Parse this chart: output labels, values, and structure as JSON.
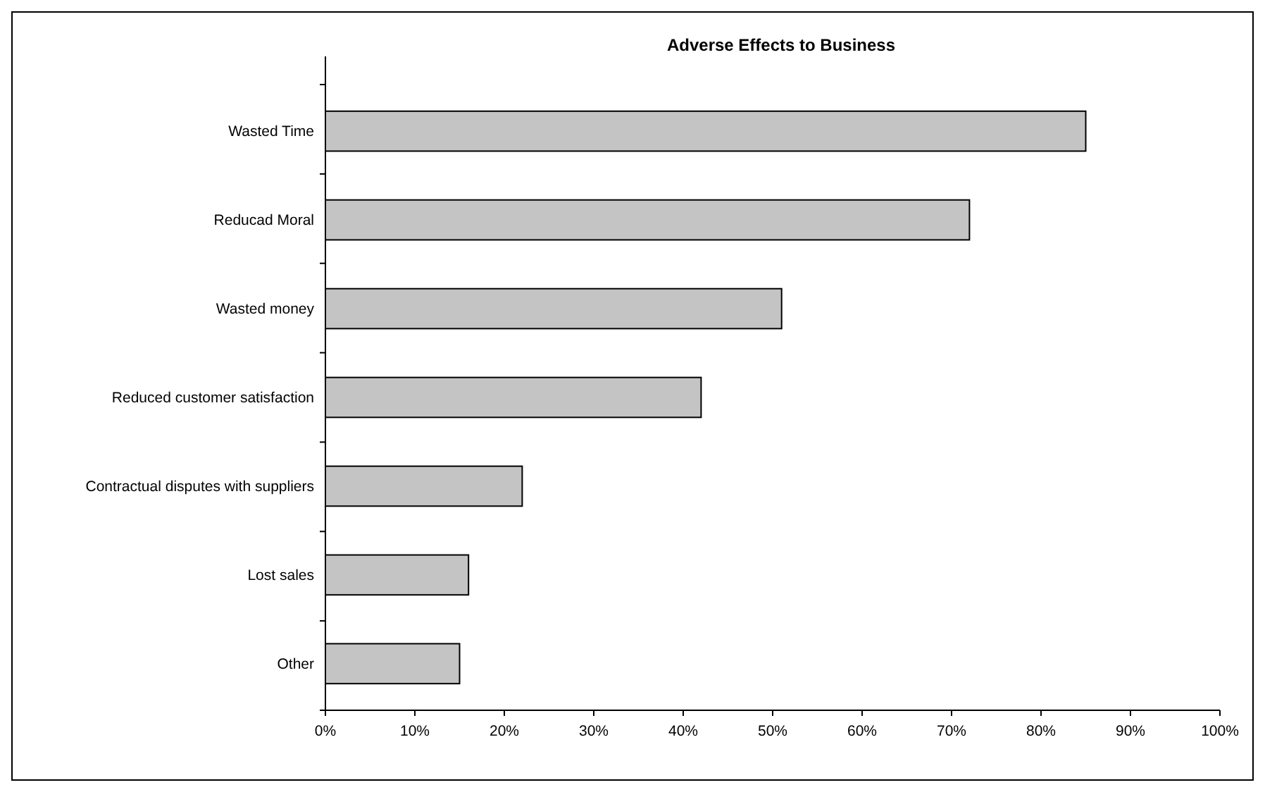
{
  "chart_data": {
    "type": "bar",
    "orientation": "horizontal",
    "title": "Adverse Effects to Business",
    "categories": [
      "Wasted Time",
      "Reducad Moral",
      "Wasted money",
      "Reduced customer satisfaction",
      "Contractual disputes with suppliers",
      "Lost sales",
      "Other"
    ],
    "values": [
      85,
      72,
      51,
      42,
      22,
      16,
      15
    ],
    "color": "#c4c4c4",
    "xlim": [
      0,
      100
    ],
    "xticks": [
      {
        "value": 0,
        "label": "0%"
      },
      {
        "value": 10,
        "label": "10%"
      },
      {
        "value": 20,
        "label": "20%"
      },
      {
        "value": 30,
        "label": "30%"
      },
      {
        "value": 40,
        "label": "40%"
      },
      {
        "value": 50,
        "label": "50%"
      },
      {
        "value": 60,
        "label": "60%"
      },
      {
        "value": 70,
        "label": "70%"
      },
      {
        "value": 80,
        "label": "80%"
      },
      {
        "value": 90,
        "label": "90%"
      },
      {
        "value": 100,
        "label": "100%"
      }
    ],
    "grid": false
  }
}
